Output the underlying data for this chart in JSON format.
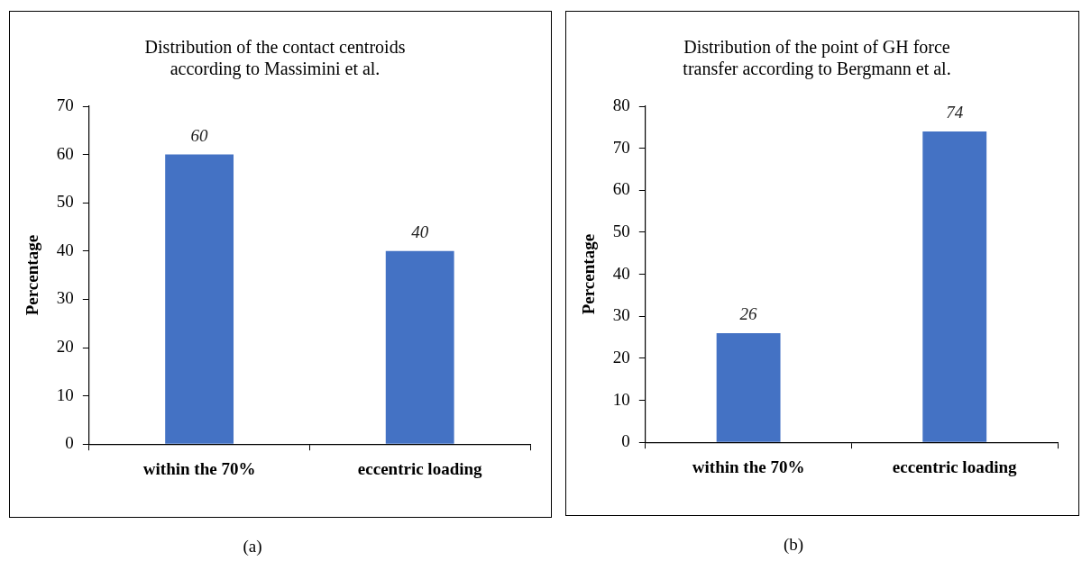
{
  "chart_data": [
    {
      "type": "bar",
      "title": "Distribution of the contact centroids\naccording to Massimini et al.",
      "ylabel": "Percentage",
      "categories": [
        "within the 70%",
        "eccentric loading"
      ],
      "values": [
        60,
        40
      ],
      "color": "#4472c4",
      "ylim": [
        0,
        70
      ],
      "yticks": [
        0,
        10,
        20,
        30,
        40,
        50,
        60,
        70
      ],
      "grid": false,
      "legend": false,
      "data_labels": true,
      "annotations": [
        "(a)"
      ]
    },
    {
      "type": "bar",
      "title": "Distribution of the point of GH force\ntransfer according to Bergmann et al.",
      "ylabel": "Percentage",
      "categories": [
        "within the 70%",
        "eccentric loading"
      ],
      "values": [
        26,
        74
      ],
      "color": "#4472c4",
      "ylim": [
        0,
        80
      ],
      "yticks": [
        0,
        10,
        20,
        30,
        40,
        50,
        60,
        70,
        80
      ],
      "grid": false,
      "legend": false,
      "data_labels": true,
      "annotations": [
        "(b)"
      ]
    }
  ]
}
